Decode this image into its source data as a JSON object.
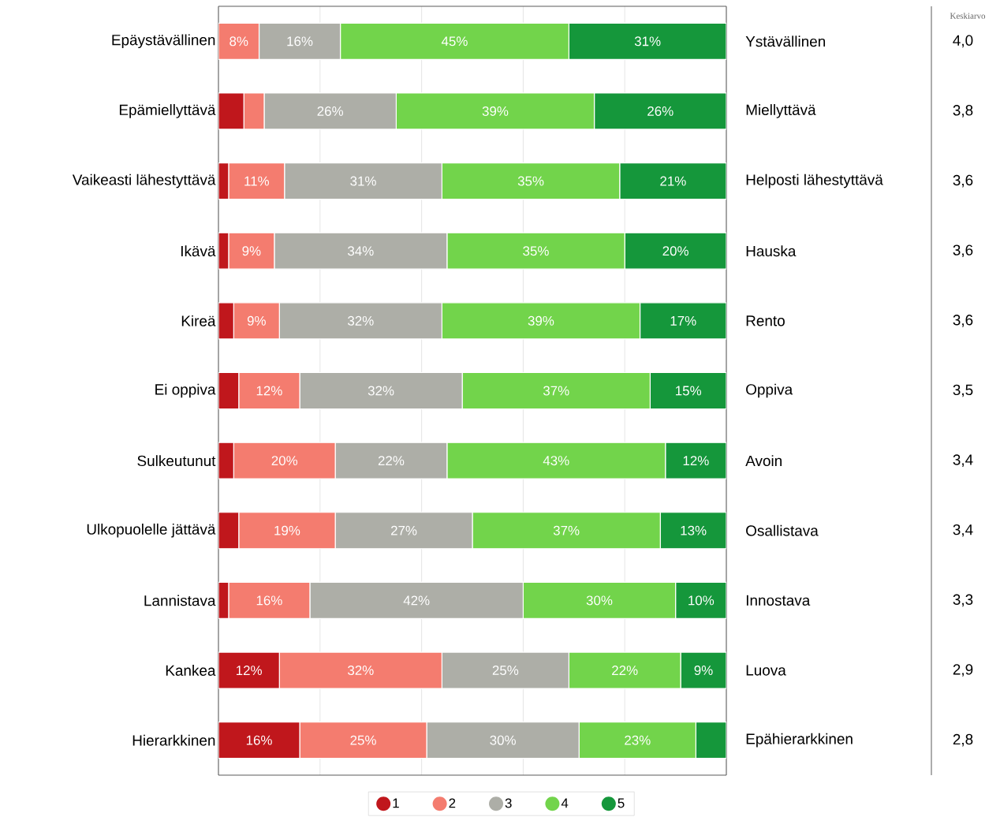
{
  "chart_data": {
    "type": "bar",
    "orientation": "horizontal",
    "stacked": true,
    "categories": [
      "Epäystävällinen",
      "Epämiellyttävä",
      "Vaikeasti lähestyttävä",
      "Ikävä",
      "Kireä",
      "Ei oppiva",
      "Sulkeutunut",
      "Ulkopuolelle jättävä",
      "Lannistava",
      "Kankea",
      "Hierarkkinen"
    ],
    "series": [
      {
        "name": "1",
        "color": "#c0171c",
        "values": [
          0,
          5,
          2,
          2,
          3,
          4,
          3,
          4,
          2,
          12,
          16
        ],
        "value_labels": [
          null,
          null,
          null,
          null,
          null,
          null,
          null,
          null,
          null,
          "12%",
          "16%"
        ]
      },
      {
        "name": "2",
        "color": "#f47c6f",
        "values": [
          8,
          4,
          11,
          9,
          9,
          12,
          20,
          19,
          16,
          32,
          25
        ],
        "value_labels": [
          "8%",
          null,
          "11%",
          "9%",
          "9%",
          "12%",
          "20%",
          "19%",
          "16%",
          "32%",
          "25%"
        ]
      },
      {
        "name": "3",
        "color": "#adaea7",
        "values": [
          16,
          26,
          31,
          34,
          32,
          32,
          22,
          27,
          42,
          25,
          30
        ],
        "value_labels": [
          "16%",
          "26%",
          "31%",
          "34%",
          "32%",
          "32%",
          "22%",
          "27%",
          "42%",
          "25%",
          "30%"
        ]
      },
      {
        "name": "4",
        "color": "#72d44b",
        "values": [
          45,
          39,
          35,
          35,
          39,
          37,
          43,
          37,
          30,
          22,
          23
        ],
        "value_labels": [
          "45%",
          "39%",
          "35%",
          "35%",
          "39%",
          "37%",
          "43%",
          "37%",
          "30%",
          "22%",
          "23%"
        ]
      },
      {
        "name": "5",
        "color": "#15973b",
        "values": [
          31,
          26,
          21,
          20,
          17,
          15,
          12,
          13,
          10,
          9,
          6
        ],
        "value_labels": [
          "31%",
          "26%",
          "21%",
          "20%",
          "17%",
          "15%",
          "12%",
          "13%",
          "10%",
          "9%",
          null
        ]
      }
    ],
    "xlim": [
      0,
      100
    ],
    "xticks": [
      {
        "value": 0,
        "label": null
      },
      {
        "value": 20,
        "label": null
      },
      {
        "value": 40,
        "label": null
      },
      {
        "value": 60,
        "label": null
      },
      {
        "value": 80,
        "label": null
      },
      {
        "value": 100,
        "label": null
      }
    ],
    "tick_labels": "y",
    "grid": "x",
    "legend": "bottom",
    "annotations": [
      "Keskiarvo",
      "Ystävällinen",
      "Miellyttävä",
      "Helposti lähestyttävä",
      "Hauska",
      "Rento",
      "Oppiva",
      "Avoin",
      "Osallistava",
      "Innostava",
      "Luova",
      "Epähierarkkinen",
      "4,0",
      "3,8",
      "3,6",
      "3,6",
      "3,6",
      "3,5",
      "3,4",
      "3,4",
      "3,3",
      "2,9",
      "2,8"
    ]
  }
}
